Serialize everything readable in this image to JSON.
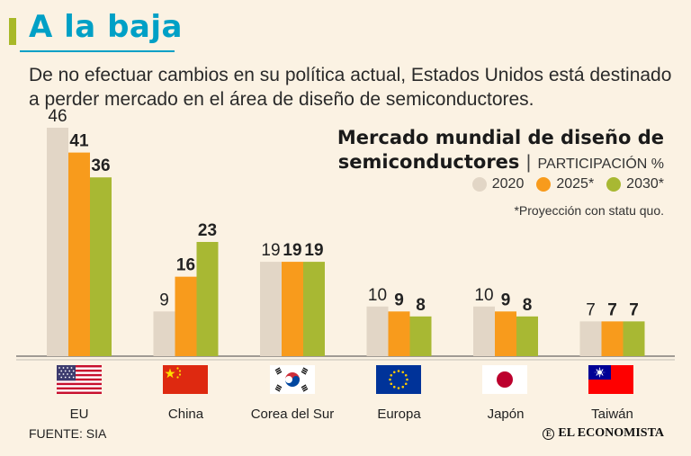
{
  "header": {
    "title": "A la baja",
    "subtitle": "De no efectuar cambios en su política actual, Estados Unidos está destinado a perder mercado en el área de diseño de semiconductores."
  },
  "chart_data": {
    "type": "bar",
    "title_line1": "Mercado mundial de diseño de",
    "title_line2": "semiconductores",
    "separator": "|",
    "unit_label": "PARTICIPACIÓN %",
    "note": "*Proyección con statu quo.",
    "categories": [
      "EU",
      "China",
      "Corea del Sur",
      "Europa",
      "Japón",
      "Taiwán"
    ],
    "series": [
      {
        "name": "2020",
        "values": [
          46,
          9,
          19,
          10,
          10,
          7
        ],
        "color": "#e2d6c6"
      },
      {
        "name": "2025*",
        "values": [
          41,
          16,
          19,
          9,
          9,
          7
        ],
        "color": "#f89b1c"
      },
      {
        "name": "2030*",
        "values": [
          36,
          23,
          19,
          8,
          8,
          7
        ],
        "color": "#a8b833"
      }
    ],
    "ylim": [
      0,
      46
    ],
    "xlabel": "",
    "ylabel": ""
  },
  "flags": [
    "us-flag-icon",
    "china-flag-icon",
    "korea-flag-icon",
    "eu-flag-icon",
    "japan-flag-icon",
    "taiwan-flag-icon"
  ],
  "footer": {
    "source": "FUENTE: SIA",
    "brand": "EL ECONOMISTA",
    "brand_icon": "E"
  },
  "colors": {
    "accent": "#00a0c6",
    "bar_2020": "#e2d6c6",
    "bar_2025": "#f89b1c",
    "bar_2030": "#a8b833",
    "background": "#fbf2e3"
  }
}
